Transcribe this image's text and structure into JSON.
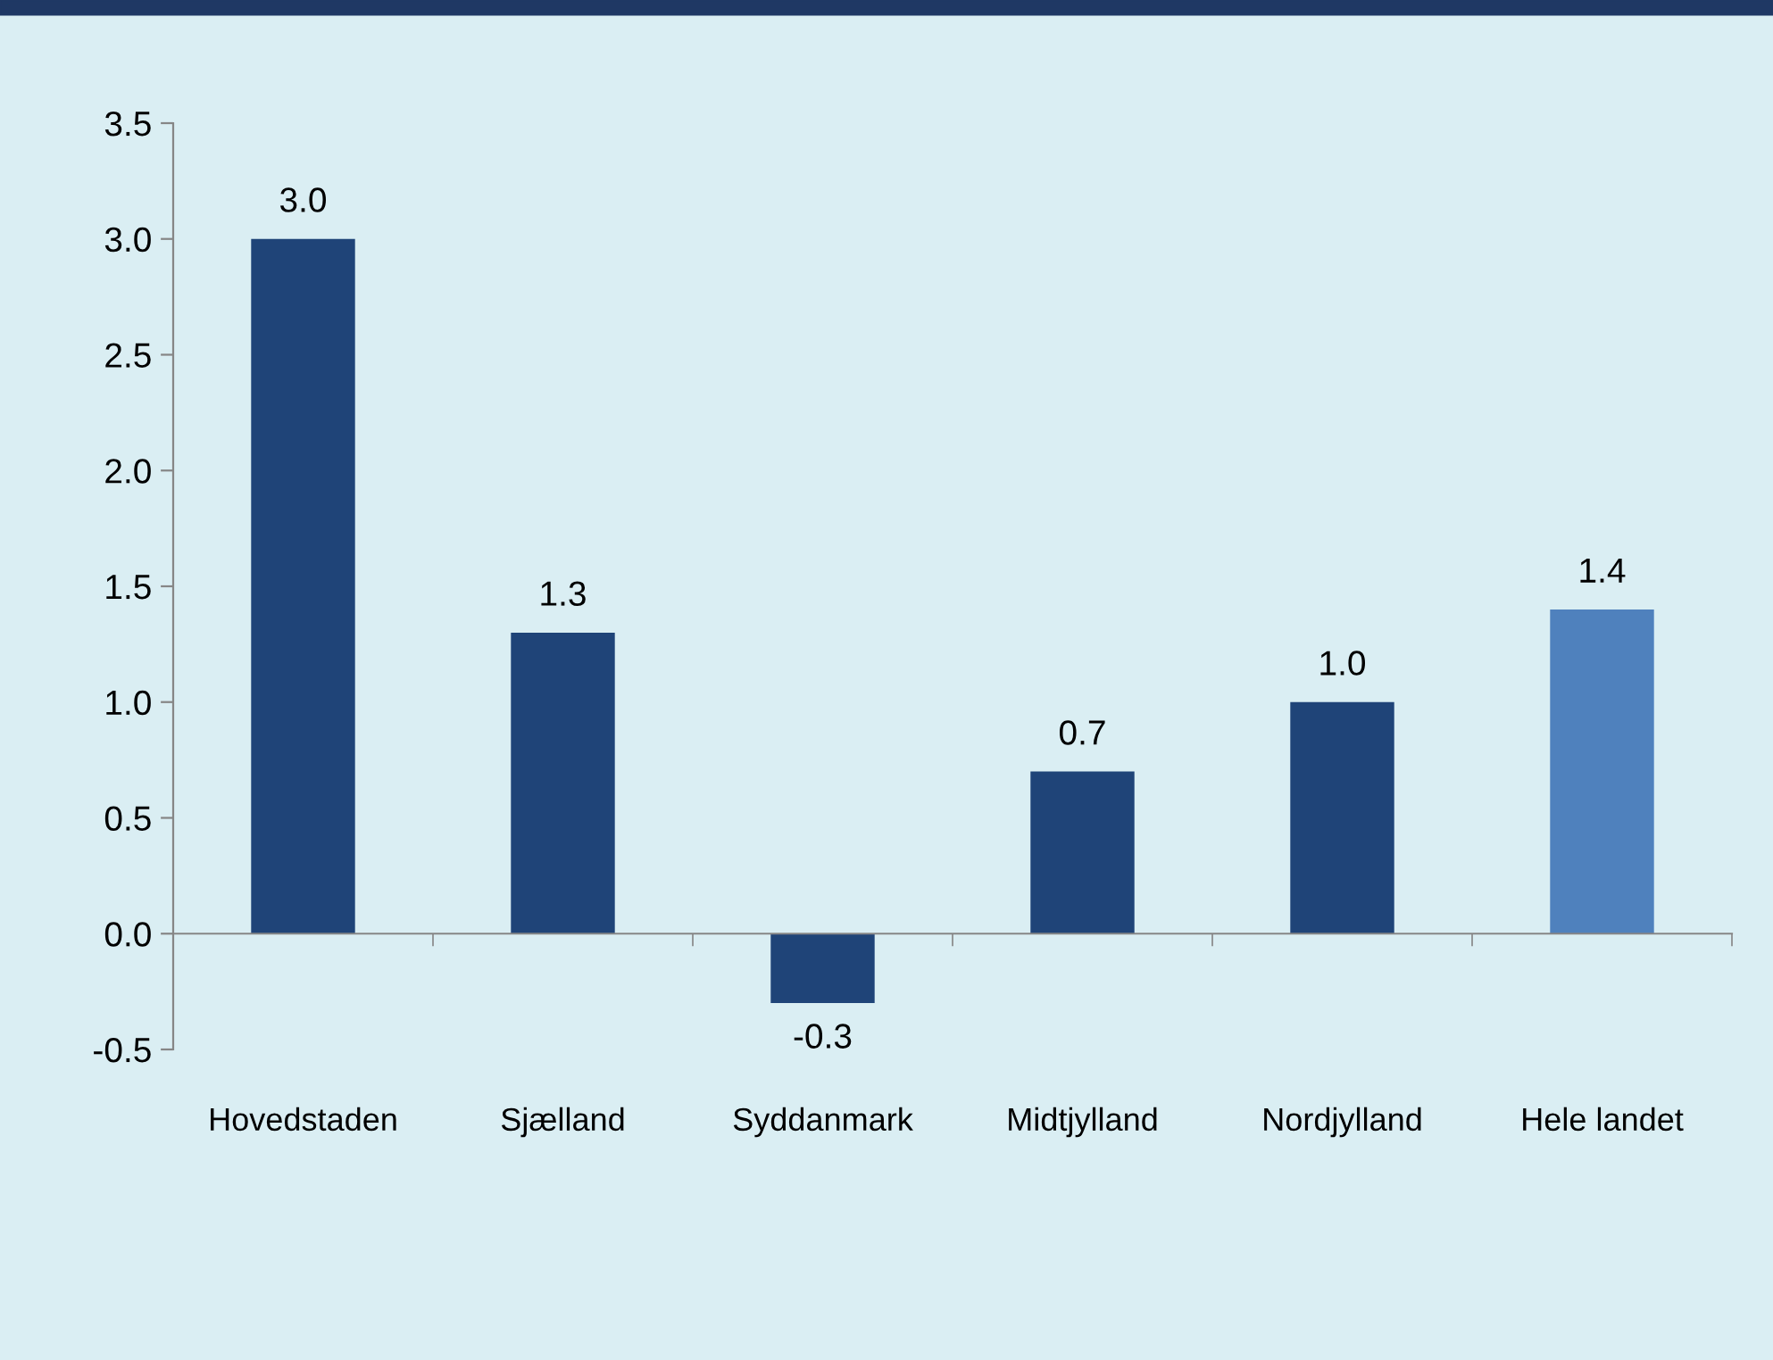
{
  "chart_data": {
    "type": "bar",
    "categories": [
      "Hovedstaden",
      "Sjælland",
      "Syddanmark",
      "Midtjylland",
      "Nordjylland",
      "Hele landet"
    ],
    "values": [
      3.0,
      1.3,
      -0.3,
      0.7,
      1.0,
      1.4
    ],
    "colors": [
      "#1f4478",
      "#1f4478",
      "#1f4478",
      "#1f4478",
      "#1f4478",
      "#4f81bd"
    ],
    "ylim": [
      -0.5,
      3.5
    ],
    "yticks": [
      {
        "value": -0.5,
        "label": "-0.5"
      },
      {
        "value": 0,
        "label": "0.0"
      },
      {
        "value": 0.5,
        "label": "0.5"
      },
      {
        "value": 1,
        "label": "1.0"
      },
      {
        "value": 1.5,
        "label": "1.5"
      },
      {
        "value": 2,
        "label": "2.0"
      },
      {
        "value": 2.5,
        "label": "2.5"
      },
      {
        "value": 3,
        "label": "3.0"
      },
      {
        "value": 3.5,
        "label": "3.5"
      }
    ],
    "value_labels": [
      "3.0",
      "1.3",
      "-0.3",
      "0.7",
      "1.0",
      "1.4"
    ]
  }
}
